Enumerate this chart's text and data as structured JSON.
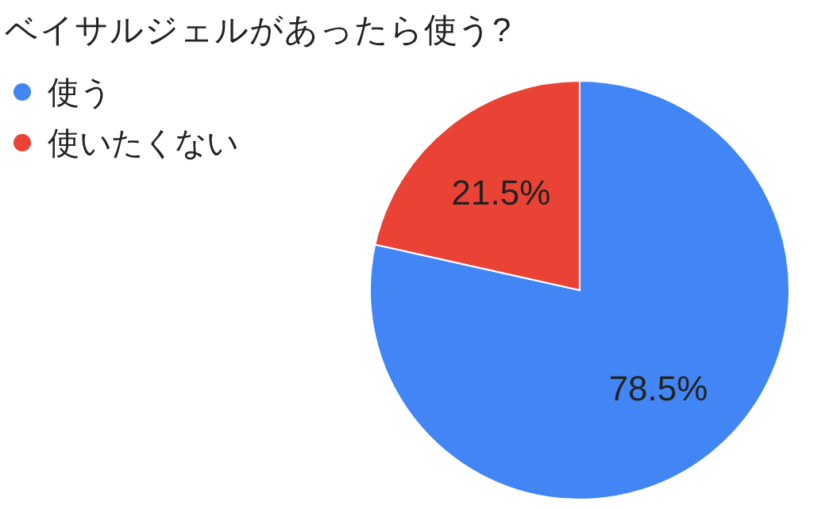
{
  "chart_data": {
    "type": "pie",
    "title": "ベイサルジェルがあったら使う?",
    "categories": [
      "使う",
      "使いたくない"
    ],
    "values": [
      78.5,
      21.5
    ],
    "value_labels": [
      "78.5%",
      "21.5%"
    ],
    "colors": [
      "#4285f4",
      "#ea4335"
    ],
    "legend": "left"
  }
}
